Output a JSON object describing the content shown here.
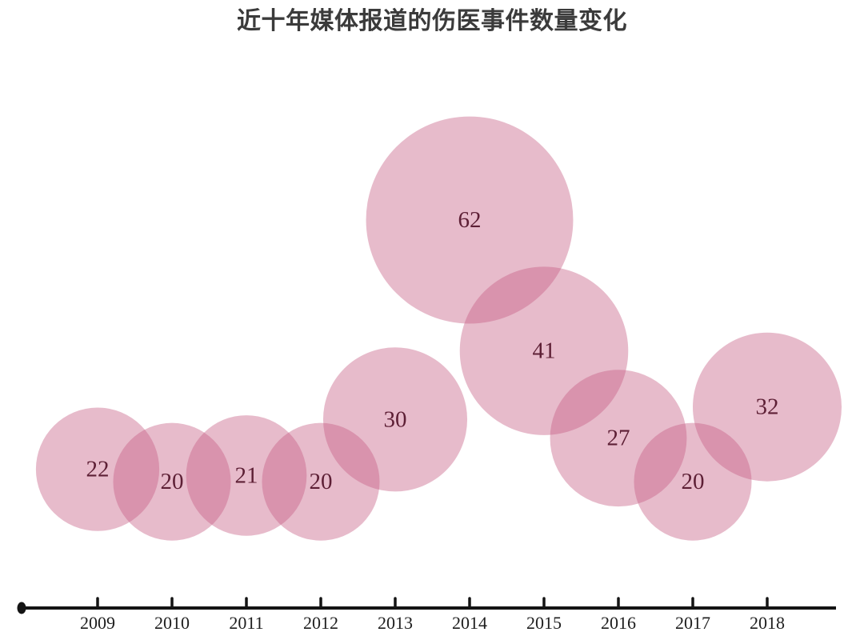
{
  "title": "近十年媒体报道的伤医事件数量变化",
  "colors": {
    "background": "#ffffff",
    "bubble_fill": "#c65d82",
    "bubble_opacity": "0.42",
    "value_label": "#5d1f35",
    "title_text": "#3b3b3b",
    "axis_line": "#141414",
    "year_label": "#1e1e1e"
  },
  "chart_data": {
    "type": "bubble",
    "title": "近十年媒体报道的伤医事件数量变化",
    "categories": [
      "2009",
      "2010",
      "2011",
      "2012",
      "2013",
      "2014",
      "2015",
      "2016",
      "2017",
      "2018"
    ],
    "values": [
      22,
      20,
      21,
      20,
      30,
      62,
      41,
      27,
      20,
      32
    ],
    "xlabel": "",
    "ylabel": "",
    "legend": "none",
    "grid": false,
    "value_range": [
      20,
      62
    ],
    "encoding": "timeline bubble chart: bubble area and vertical rise proportional to value; value printed at bubble center; years ticked along bottom axis"
  }
}
